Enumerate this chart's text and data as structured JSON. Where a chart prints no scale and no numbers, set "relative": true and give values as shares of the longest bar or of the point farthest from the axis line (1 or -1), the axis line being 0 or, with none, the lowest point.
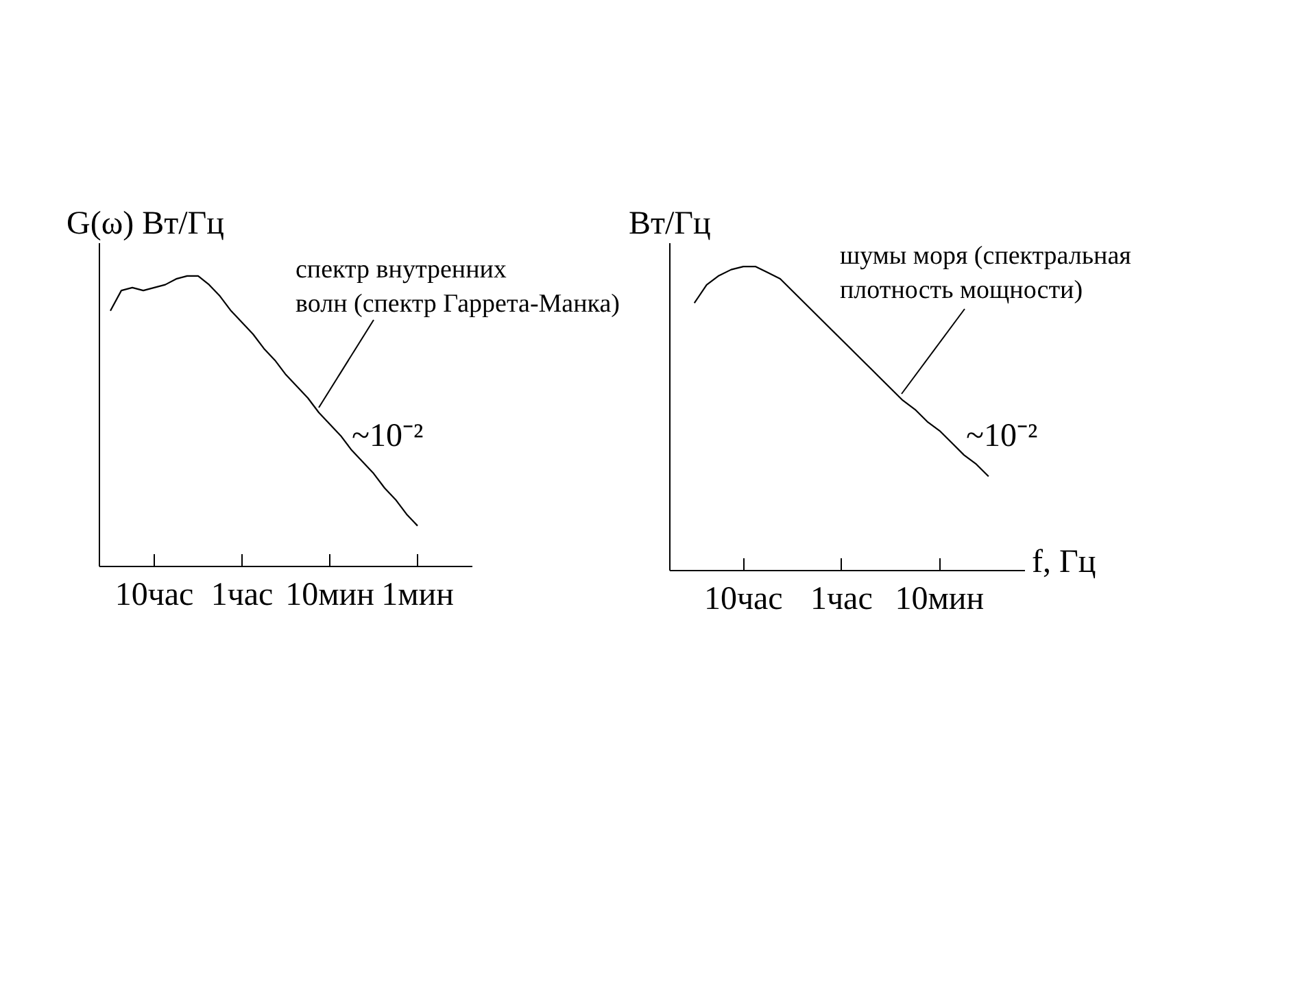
{
  "chart_data": [
    {
      "type": "line",
      "relative": true,
      "ylabel": "G(ω) Вт/Гц",
      "tick_labels": "x",
      "categories": [
        null,
        null,
        null,
        null,
        null,
        "10час",
        null,
        null,
        null,
        null,
        null,
        null,
        null,
        "1час",
        null,
        null,
        null,
        null,
        null,
        null,
        null,
        "10мин",
        null,
        null,
        null,
        null,
        null,
        null,
        null,
        "1мин",
        null,
        null,
        null,
        null,
        null
      ],
      "series": [
        {
          "color": "#000000",
          "values": [
            null,
            0.88,
            0.95,
            0.96,
            0.95,
            0.96,
            0.97,
            0.99,
            1.0,
            1.0,
            0.97,
            0.93,
            0.88,
            0.84,
            0.8,
            0.75,
            0.71,
            0.66,
            0.62,
            0.58,
            0.53,
            0.49,
            0.45,
            0.4,
            0.36,
            0.32,
            0.27,
            0.23,
            0.18,
            0.14,
            null,
            null,
            null,
            null,
            null
          ]
        }
      ],
      "annotations": [
        "спектр внутренних\nволн (спектр Гаррета-Манка)",
        "~10⁻²"
      ]
    },
    {
      "type": "line",
      "relative": true,
      "ylabel": "Вт/Гц",
      "xlabel": "f, Гц",
      "tick_labels": "x",
      "categories": [
        null,
        null,
        null,
        null,
        null,
        null,
        "10час",
        null,
        null,
        null,
        null,
        null,
        null,
        null,
        "1час",
        null,
        null,
        null,
        null,
        null,
        null,
        null,
        "10мин",
        null,
        null,
        null,
        null,
        null,
        null,
        null
      ],
      "series": [
        {
          "color": "#000000",
          "values": [
            null,
            null,
            0.88,
            0.94,
            0.97,
            0.99,
            1.0,
            1.0,
            0.98,
            0.96,
            0.92,
            0.88,
            0.84,
            0.8,
            0.76,
            0.72,
            0.68,
            0.64,
            0.6,
            0.56,
            0.53,
            0.49,
            0.46,
            0.42,
            0.38,
            0.35,
            0.31,
            null,
            null,
            null
          ]
        }
      ],
      "annotations": [
        "шумы моря (спектральная\nплотность мощности)",
        "~10⁻²"
      ]
    }
  ]
}
